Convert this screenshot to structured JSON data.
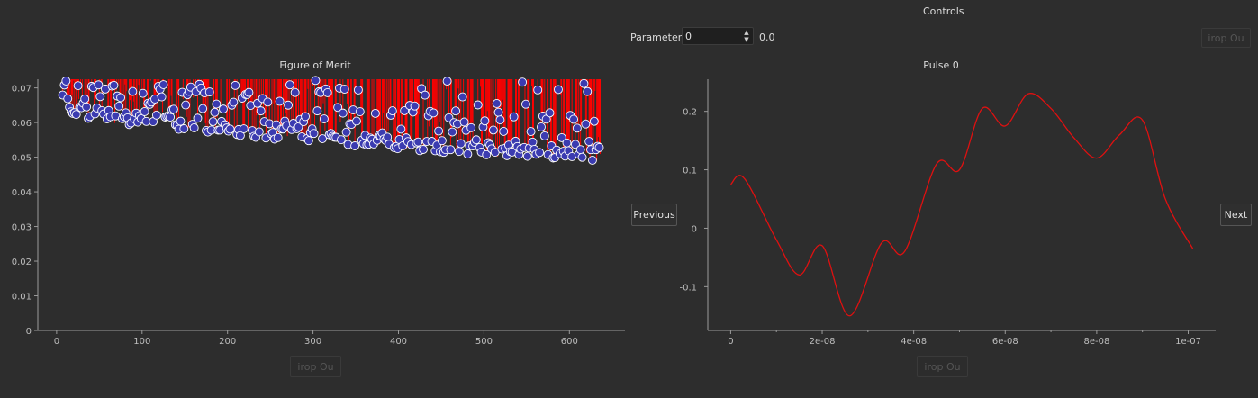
{
  "controls": {
    "title": "Controls",
    "parameter_label": "Parameter",
    "parameter_value": "0",
    "parameter_display": "0.0",
    "previous_label": "Previous",
    "next_label": "Next",
    "top_right_button": "irop Ou",
    "bottom_left_button": "irop Ou",
    "bottom_right_button": "irop Ou"
  },
  "chart_data": [
    {
      "type": "scatter",
      "title": "Figure of Merit",
      "xlabel": "",
      "ylabel": "",
      "xlim": [
        -22,
        665
      ],
      "ylim": [
        0,
        0.0725
      ],
      "xticks": [
        0,
        100,
        200,
        300,
        400,
        500,
        600
      ],
      "yticks": [
        0,
        0.01,
        0.02,
        0.03,
        0.04,
        0.05,
        0.06,
        0.07
      ],
      "ytick_labels": [
        "0",
        "0.01",
        "0.02",
        "0.03",
        "0.04",
        "0.05",
        "0.06",
        "0.07"
      ],
      "marker_color": "#3b3bb0",
      "marker_edge": "#ffffff",
      "stem_color": "#ff0000",
      "x_start": 7,
      "x_end": 636,
      "n_points": 630,
      "lower_envelope_start": 0.0615,
      "lower_envelope_end": 0.049,
      "max_value": 0.0725,
      "note_series": "Markers scatter between lower envelope and 0.0725; many vertical red stems from each point up to the top."
    },
    {
      "type": "line",
      "title": "Pulse 0",
      "xlabel": "",
      "ylabel": "",
      "xlim": [
        -5e-09,
        1.06e-07
      ],
      "ylim": [
        -0.175,
        0.255
      ],
      "xticks": [
        0,
        2e-08,
        4e-08,
        6e-08,
        8e-08,
        1e-07
      ],
      "xtick_labels": [
        "0",
        "2e-08",
        "4e-08",
        "6e-08",
        "8e-08",
        "1e-07"
      ],
      "yticks": [
        -0.1,
        0,
        0.1,
        0.2
      ],
      "ytick_labels": [
        "-0.1",
        "0",
        "0.1",
        "0.2"
      ],
      "line_color": "#e01010",
      "x": [
        0,
        3e-09,
        1e-08,
        1.5e-08,
        2e-08,
        2.6e-08,
        3.3e-08,
        3.8e-08,
        4.5e-08,
        5e-08,
        5.5e-08,
        6e-08,
        6.5e-08,
        7e-08,
        7.5e-08,
        8e-08,
        8.5e-08,
        9e-08,
        9.5e-08,
        1.01e-07
      ],
      "y": [
        0.075,
        0.085,
        -0.02,
        -0.08,
        -0.03,
        -0.15,
        -0.025,
        -0.04,
        0.11,
        0.1,
        0.205,
        0.175,
        0.23,
        0.205,
        0.155,
        0.12,
        0.16,
        0.185,
        0.05,
        -0.035
      ]
    }
  ]
}
